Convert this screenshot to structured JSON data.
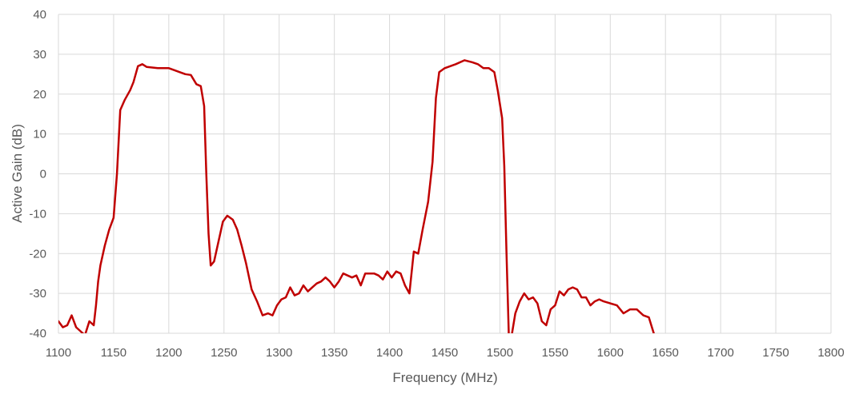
{
  "chart_data": {
    "type": "line",
    "title": "",
    "xlabel": "Frequency (MHz)",
    "ylabel": "Active Gain (dB)",
    "xlim": [
      1100,
      1800
    ],
    "ylim": [
      -40,
      40
    ],
    "xticks": [
      1100,
      1150,
      1200,
      1250,
      1300,
      1350,
      1400,
      1450,
      1500,
      1550,
      1600,
      1650,
      1700,
      1750,
      1800
    ],
    "yticks": [
      -40,
      -30,
      -20,
      -10,
      0,
      10,
      20,
      30,
      40
    ],
    "grid": true,
    "legend": "none",
    "series": [
      {
        "color": "#c00000",
        "points": [
          [
            1100,
            -37
          ],
          [
            1104,
            -38.5
          ],
          [
            1108,
            -38
          ],
          [
            1112,
            -35.5
          ],
          [
            1116,
            -38.5
          ],
          [
            1120,
            -39.5
          ],
          [
            1124,
            -40.5
          ],
          [
            1128,
            -37
          ],
          [
            1132,
            -38
          ],
          [
            1134,
            -33
          ],
          [
            1136,
            -27
          ],
          [
            1138,
            -23
          ],
          [
            1142,
            -18
          ],
          [
            1146,
            -14
          ],
          [
            1150,
            -11
          ],
          [
            1153,
            0
          ],
          [
            1156,
            16
          ],
          [
            1160,
            18.5
          ],
          [
            1165,
            21
          ],
          [
            1168,
            23
          ],
          [
            1172,
            27
          ],
          [
            1176,
            27.5
          ],
          [
            1180,
            26.8
          ],
          [
            1190,
            26.5
          ],
          [
            1200,
            26.5
          ],
          [
            1205,
            26
          ],
          [
            1210,
            25.5
          ],
          [
            1215,
            25
          ],
          [
            1220,
            24.8
          ],
          [
            1225,
            22.5
          ],
          [
            1229,
            22
          ],
          [
            1232,
            17
          ],
          [
            1234,
            0
          ],
          [
            1236,
            -15
          ],
          [
            1238,
            -23
          ],
          [
            1241,
            -22
          ],
          [
            1245,
            -17
          ],
          [
            1249,
            -12
          ],
          [
            1253,
            -10.5
          ],
          [
            1258,
            -11.5
          ],
          [
            1262,
            -14
          ],
          [
            1266,
            -18
          ],
          [
            1270,
            -22.5
          ],
          [
            1275,
            -29
          ],
          [
            1280,
            -32
          ],
          [
            1285,
            -35.5
          ],
          [
            1290,
            -35
          ],
          [
            1294,
            -35.5
          ],
          [
            1298,
            -33
          ],
          [
            1302,
            -31.5
          ],
          [
            1306,
            -31
          ],
          [
            1310,
            -28.5
          ],
          [
            1314,
            -30.5
          ],
          [
            1318,
            -30
          ],
          [
            1322,
            -28
          ],
          [
            1326,
            -29.5
          ],
          [
            1330,
            -28.5
          ],
          [
            1334,
            -27.5
          ],
          [
            1338,
            -27
          ],
          [
            1342,
            -26
          ],
          [
            1346,
            -27
          ],
          [
            1350,
            -28.5
          ],
          [
            1354,
            -27
          ],
          [
            1358,
            -25
          ],
          [
            1362,
            -25.5
          ],
          [
            1366,
            -26
          ],
          [
            1370,
            -25.5
          ],
          [
            1374,
            -28
          ],
          [
            1378,
            -25
          ],
          [
            1382,
            -25
          ],
          [
            1386,
            -25
          ],
          [
            1390,
            -25.5
          ],
          [
            1394,
            -26.5
          ],
          [
            1398,
            -24.5
          ],
          [
            1402,
            -26
          ],
          [
            1406,
            -24.5
          ],
          [
            1410,
            -25
          ],
          [
            1414,
            -28
          ],
          [
            1418,
            -30
          ],
          [
            1422,
            -19.5
          ],
          [
            1426,
            -20
          ],
          [
            1430,
            -14
          ],
          [
            1435,
            -7
          ],
          [
            1439,
            3
          ],
          [
            1442,
            19
          ],
          [
            1445,
            25.5
          ],
          [
            1450,
            26.5
          ],
          [
            1460,
            27.5
          ],
          [
            1468,
            28.5
          ],
          [
            1475,
            28
          ],
          [
            1480,
            27.5
          ],
          [
            1485,
            26.5
          ],
          [
            1490,
            26.5
          ],
          [
            1495,
            25.5
          ],
          [
            1498,
            21
          ],
          [
            1502,
            14
          ],
          [
            1504,
            2
          ],
          [
            1506,
            -20
          ],
          [
            1508,
            -40
          ],
          [
            1510,
            -44
          ],
          [
            1511,
            -40
          ],
          [
            1514,
            -35
          ],
          [
            1518,
            -32
          ],
          [
            1522,
            -30
          ],
          [
            1526,
            -31.5
          ],
          [
            1530,
            -31
          ],
          [
            1534,
            -32.5
          ],
          [
            1538,
            -37
          ],
          [
            1542,
            -38
          ],
          [
            1546,
            -34
          ],
          [
            1550,
            -33
          ],
          [
            1554,
            -29.5
          ],
          [
            1558,
            -30.5
          ],
          [
            1562,
            -29
          ],
          [
            1566,
            -28.5
          ],
          [
            1570,
            -29
          ],
          [
            1574,
            -31
          ],
          [
            1578,
            -31
          ],
          [
            1582,
            -33
          ],
          [
            1586,
            -32
          ],
          [
            1590,
            -31.5
          ],
          [
            1594,
            -32
          ],
          [
            1600,
            -32.5
          ],
          [
            1606,
            -33
          ],
          [
            1612,
            -35
          ],
          [
            1618,
            -34
          ],
          [
            1624,
            -34
          ],
          [
            1630,
            -35.5
          ],
          [
            1635,
            -36
          ],
          [
            1640,
            -40.5
          ]
        ]
      }
    ]
  }
}
